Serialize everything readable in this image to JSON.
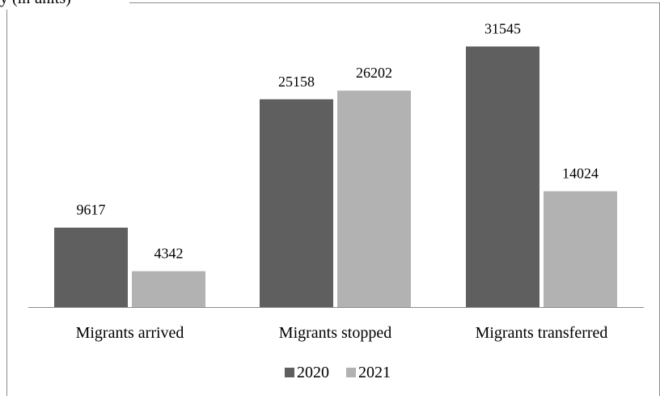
{
  "header_fragment": "y (in units)",
  "chart_data": {
    "type": "bar",
    "categories": [
      "Migrants arrived",
      "Migrants stopped",
      "Migrants transferred"
    ],
    "series": [
      {
        "name": "2020",
        "values": [
          9617,
          25158,
          31545
        ],
        "color": "#5f5f5f"
      },
      {
        "name": "2021",
        "values": [
          4342,
          26202,
          14024
        ],
        "color": "#b2b2b2"
      }
    ],
    "ylim": [
      0,
      36000
    ],
    "grid": false,
    "legend_position": "bottom"
  }
}
